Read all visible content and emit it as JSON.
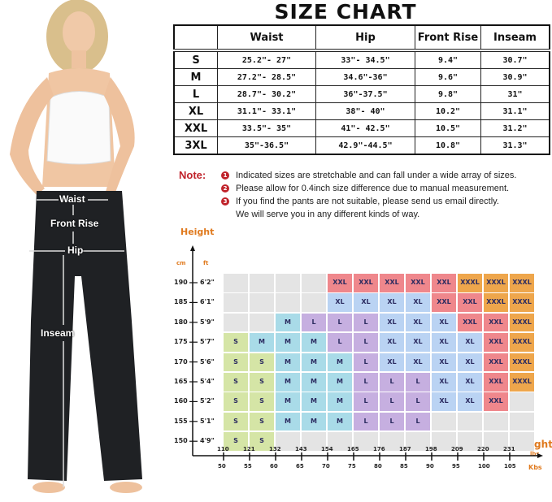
{
  "title": "SIZE CHART",
  "table": {
    "headers": [
      "",
      "Waist",
      "Hip",
      "Front Rise",
      "Inseam"
    ],
    "rows": [
      [
        "S",
        "25.2\"- 27\"",
        "33\"- 34.5\"",
        "9.4\"",
        "30.7\""
      ],
      [
        "M",
        "27.2\"- 28.5\"",
        "34.6\"-36\"",
        "9.6\"",
        "30.9\""
      ],
      [
        "L",
        "28.7\"- 30.2\"",
        "36\"-37.5\"",
        "9.8\"",
        "31\""
      ],
      [
        "XL",
        "31.1\"- 33.1\"",
        "38\"- 40\"",
        "10.2\"",
        "31.1\""
      ],
      [
        "XXL",
        "33.5\"- 35\"",
        "41\"- 42.5\"",
        "10.5\"",
        "31.2\""
      ],
      [
        "3XL",
        "35\"-36.5\"",
        "42.9\"-44.5\"",
        "10.8\"",
        "31.3\""
      ]
    ]
  },
  "notes": {
    "label": "Note:",
    "items": [
      {
        "num": "1",
        "text": "Indicated sizes are stretchable and can fall under a wide array of sizes."
      },
      {
        "num": "2",
        "text": "Please allow for 0.4inch size difference due to manual measurement."
      },
      {
        "num": "3",
        "text": "If you find the pants are not suitable, please send us email directly."
      }
    ],
    "continuation": "We will serve you in any different kinds of way."
  },
  "photo_labels": {
    "waist": "Waist",
    "front_rise": "Front Rise",
    "hip": "Hip",
    "inseam": "Inseam"
  },
  "chart_data": {
    "type": "heatmap",
    "y_title": "Height",
    "y_units": [
      "cm",
      "ft"
    ],
    "y_cm": [
      "190",
      "185",
      "180",
      "175",
      "170",
      "165",
      "160",
      "155",
      "150"
    ],
    "y_ft": [
      "6'2\"",
      "6'1\"",
      "5'9\"",
      "5'7\"",
      "5'6\"",
      "5'4\"",
      "5'2\"",
      "5'1\"",
      "4'9\""
    ],
    "x_title": "Weight",
    "x_units": [
      "lbs",
      "Kbs"
    ],
    "x_lbs": [
      "110",
      "121",
      "132",
      "143",
      "154",
      "165",
      "176",
      "187",
      "198",
      "209",
      "220",
      "231"
    ],
    "x_kg": [
      "50",
      "55",
      "60",
      "65",
      "70",
      "75",
      "80",
      "85",
      "90",
      "95",
      "100",
      "105"
    ],
    "grid": [
      [
        "",
        "",
        "",
        "",
        "XXL",
        "XXL",
        "XXL",
        "XXL",
        "XXL",
        "XXXL",
        "XXXL",
        "XXXL"
      ],
      [
        "",
        "",
        "",
        "",
        "XL",
        "XL",
        "XL",
        "XL",
        "XXL",
        "XXL",
        "XXXL",
        "XXXL"
      ],
      [
        "",
        "",
        "M",
        "L",
        "L",
        "L",
        "XL",
        "XL",
        "XL",
        "XXL",
        "XXL",
        "XXXL"
      ],
      [
        "S",
        "M",
        "M",
        "M",
        "L",
        "L",
        "XL",
        "XL",
        "XL",
        "XL",
        "XXL",
        "XXXL"
      ],
      [
        "S",
        "S",
        "M",
        "M",
        "M",
        "L",
        "XL",
        "XL",
        "XL",
        "XL",
        "XXL",
        "XXXL"
      ],
      [
        "S",
        "S",
        "M",
        "M",
        "M",
        "L",
        "L",
        "L",
        "XL",
        "XL",
        "XXL",
        "XXXL"
      ],
      [
        "S",
        "S",
        "M",
        "M",
        "M",
        "L",
        "L",
        "L",
        "XL",
        "XL",
        "XXL",
        ""
      ],
      [
        "S",
        "S",
        "M",
        "M",
        "M",
        "L",
        "L",
        "L",
        "",
        "",
        "",
        ""
      ],
      [
        "S",
        "S",
        "",
        "",
        "",
        "",
        "",
        "",
        "",
        "",
        "",
        ""
      ]
    ],
    "colors": {
      "": "#e4e4e4",
      "S": "#d5e5a6",
      "M": "#a9dbe8",
      "L": "#c6afe0",
      "XL": "#bad3f3",
      "XXL": "#ef878c",
      "XXXL": "#eea64c"
    },
    "accent": "#e07a1e"
  }
}
